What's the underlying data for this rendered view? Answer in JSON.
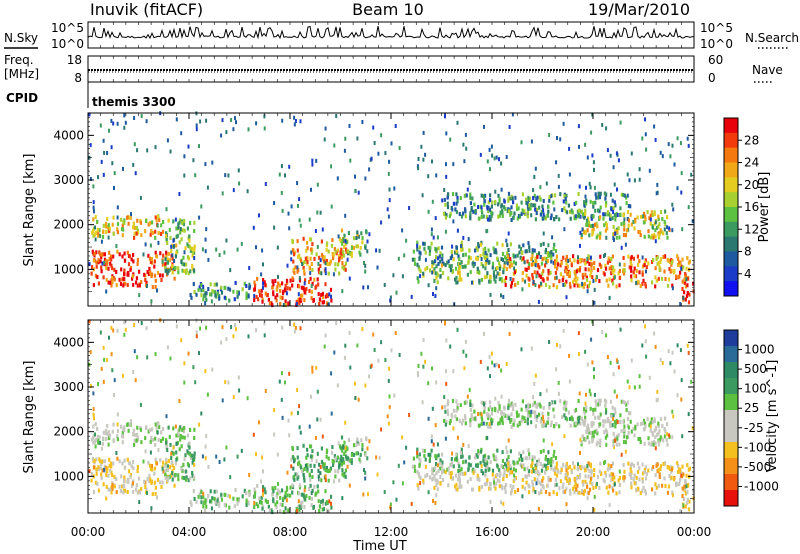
{
  "header": {
    "station": "Inuvik (fitACF)",
    "beam": "Beam 10",
    "date": "19/Mar/2010"
  },
  "panels": {
    "nsky": {
      "label": "N.Sky",
      "left_ticks": [
        "10^5",
        "10^0"
      ],
      "right_ticks": [
        "10^5",
        "10^0"
      ],
      "right_label": "N.Search"
    },
    "freq": {
      "label_line1": "Freq.",
      "label_line2": "[MHz]",
      "left_ticks": [
        "18",
        "8"
      ],
      "right_ticks": [
        "60",
        "0"
      ],
      "right_label": "Nave"
    },
    "cpid": {
      "label": "CPID",
      "value": "themis 3300"
    }
  },
  "axes": {
    "ylabel": "Slant Range [km]",
    "yticks": [
      "4000",
      "3000",
      "2000",
      "1000"
    ],
    "xlabel": "Time UT",
    "xticks": [
      "00:00",
      "04:00",
      "08:00",
      "12:00",
      "16:00",
      "20:00",
      "00:00"
    ]
  },
  "colorbars": {
    "power": {
      "label": "Power [dB]",
      "ticks": [
        "28",
        "24",
        "20",
        "16",
        "12",
        "8",
        "4"
      ],
      "colors": [
        "#e8000a",
        "#f23a0c",
        "#f47a10",
        "#f0a818",
        "#e4cc20",
        "#a8d030",
        "#5cc040",
        "#3a9a60",
        "#2a7870",
        "#1e5aa0",
        "#1a3cc8",
        "#1010f0"
      ]
    },
    "velocity": {
      "label": "Velocity [m s^-1]",
      "ticks": [
        "1000",
        "500",
        "100",
        "25",
        "-25",
        "-100",
        "-500",
        "-1000"
      ],
      "colors": [
        "#1e3c9c",
        "#2a6a98",
        "#2e8a64",
        "#3a9a60",
        "#5cc040",
        "#c8c8c0",
        "#c8c8c0",
        "#f4c020",
        "#f49018",
        "#f05a10",
        "#e8100a"
      ]
    }
  },
  "chart_data": {
    "type": "heatmap",
    "title": "Inuvik (fitACF) Beam 10 19/Mar/2010",
    "xlabel": "Time UT",
    "ylabel": "Slant Range [km]",
    "xlim_hours": [
      0,
      24
    ],
    "ylim_km": [
      180,
      4500
    ],
    "grid": false,
    "power_scale_db": [
      0,
      30
    ],
    "velocity_scale_ms": [
      -1000,
      1000
    ],
    "echo_regions": [
      {
        "t0": 0.1,
        "t1": 3.4,
        "r0": 600,
        "r1": 1400,
        "power_db": 28,
        "velocity": -300
      },
      {
        "t0": 0.1,
        "t1": 3.0,
        "r0": 1700,
        "r1": 2200,
        "power_db": 20,
        "velocity": 10
      },
      {
        "t0": 3.0,
        "t1": 4.2,
        "r0": 900,
        "r1": 2100,
        "power_db": 14,
        "velocity": 200
      },
      {
        "t0": 4.0,
        "t1": 6.5,
        "r0": 300,
        "r1": 700,
        "power_db": 10,
        "velocity": 150
      },
      {
        "t0": 6.5,
        "t1": 9.6,
        "r0": 200,
        "r1": 800,
        "power_db": 28,
        "velocity": 200
      },
      {
        "t0": 8.0,
        "t1": 10.2,
        "r0": 900,
        "r1": 1700,
        "power_db": 22,
        "velocity": 300
      },
      {
        "t0": 10.0,
        "t1": 11.0,
        "r0": 1300,
        "r1": 1900,
        "power_db": 14,
        "velocity": 200
      },
      {
        "t0": 12.8,
        "t1": 18.5,
        "r0": 1100,
        "r1": 1600,
        "power_db": 12,
        "velocity": 250
      },
      {
        "t0": 13.0,
        "t1": 16.5,
        "r0": 700,
        "r1": 1100,
        "power_db": 14,
        "velocity": -200
      },
      {
        "t0": 14.0,
        "t1": 21.5,
        "r0": 2100,
        "r1": 2700,
        "power_db": 10,
        "velocity": 80
      },
      {
        "t0": 16.5,
        "t1": 23.8,
        "r0": 600,
        "r1": 1300,
        "power_db": 24,
        "velocity": -300
      },
      {
        "t0": 19.5,
        "t1": 23.0,
        "r0": 1700,
        "r1": 2300,
        "power_db": 18,
        "velocity": 0
      },
      {
        "t0": 23.5,
        "t1": 24.0,
        "r0": 250,
        "r1": 800,
        "power_db": 26,
        "velocity": -500
      }
    ]
  }
}
